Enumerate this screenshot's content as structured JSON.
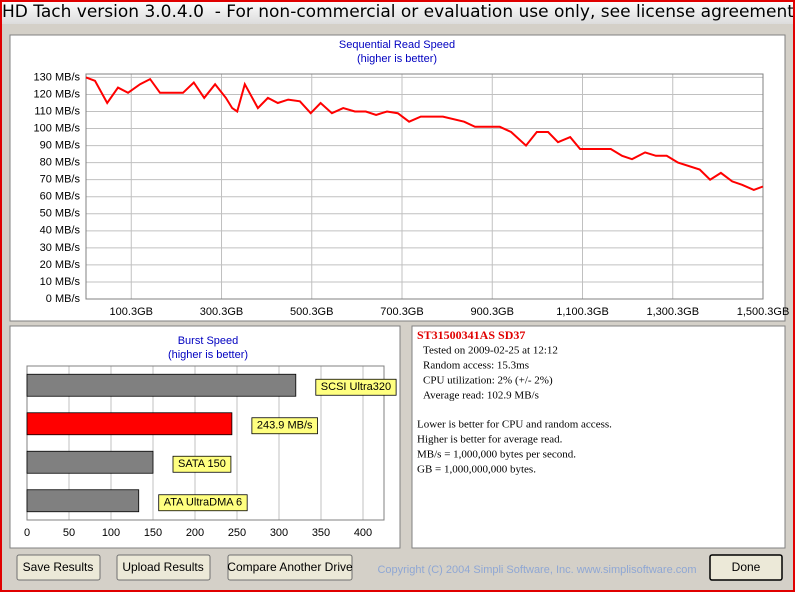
{
  "window": {
    "title": "HD Tach version 3.0.4.0  - For non-commercial or evaluation use only, see license agreement."
  },
  "chart_data": [
    {
      "type": "line",
      "title": "Sequential Read Speed",
      "subtitle": "(higher is better)",
      "x": [
        0,
        20,
        47,
        71,
        93,
        120,
        142,
        164,
        215,
        239,
        262,
        286,
        310,
        324,
        335,
        352,
        381,
        403,
        425,
        448,
        474,
        498,
        520,
        545,
        570,
        596,
        620,
        643,
        667,
        691,
        716,
        742,
        791,
        838,
        862,
        917,
        942,
        975,
        999,
        1024,
        1046,
        1073,
        1095,
        1163,
        1188,
        1210,
        1239,
        1263,
        1287,
        1312,
        1360,
        1383,
        1407,
        1432,
        1454,
        1480,
        1500
      ],
      "values": [
        130,
        128,
        115,
        124,
        121,
        126,
        129,
        121,
        121,
        127,
        118,
        126,
        118,
        112,
        110,
        126,
        112,
        118,
        115,
        117,
        116,
        109,
        115,
        109,
        112,
        110,
        110,
        108,
        110,
        109,
        104,
        107,
        107,
        104,
        101,
        101,
        98,
        90,
        98,
        98,
        92,
        95,
        88,
        88,
        84,
        82,
        86,
        84,
        84,
        80,
        76,
        70,
        74,
        69,
        67,
        64,
        66
      ],
      "color": "#ff0000",
      "xlim": [
        0,
        1500.3
      ],
      "xticks": [
        {
          "value": 100.3,
          "label": "100.3GB"
        },
        {
          "value": 300.3,
          "label": "300.3GB"
        },
        {
          "value": 500.3,
          "label": "500.3GB"
        },
        {
          "value": 700.3,
          "label": "700.3GB"
        },
        {
          "value": 900.3,
          "label": "900.3GB"
        },
        {
          "value": 1100.3,
          "label": "1,100.3GB"
        },
        {
          "value": 1300.3,
          "label": "1,300.3GB"
        },
        {
          "value": 1500.3,
          "label": "1,500.3GB"
        }
      ],
      "ylim": [
        0,
        132
      ],
      "yticks": [
        {
          "value": 0,
          "label": "0 MB/s"
        },
        {
          "value": 10,
          "label": "10 MB/s"
        },
        {
          "value": 20,
          "label": "20 MB/s"
        },
        {
          "value": 30,
          "label": "30 MB/s"
        },
        {
          "value": 40,
          "label": "40 MB/s"
        },
        {
          "value": 50,
          "label": "50 MB/s"
        },
        {
          "value": 60,
          "label": "60 MB/s"
        },
        {
          "value": 70,
          "label": "70 MB/s"
        },
        {
          "value": 80,
          "label": "80 MB/s"
        },
        {
          "value": 90,
          "label": "90 MB/s"
        },
        {
          "value": 100,
          "label": "100 MB/s"
        },
        {
          "value": 110,
          "label": "110 MB/s"
        },
        {
          "value": 120,
          "label": "120 MB/s"
        },
        {
          "value": 130,
          "label": "130 MB/s"
        }
      ],
      "grid": true
    },
    {
      "type": "bar",
      "orientation": "horizontal",
      "title": "Burst Speed",
      "subtitle": "(higher is better)",
      "categories": [
        "SCSI Ultra320",
        null,
        "SATA 150",
        "ATA UltraDMA 6"
      ],
      "values": [
        320,
        243.9,
        150,
        133
      ],
      "value_labels": [
        null,
        "243.9 MB/s",
        null,
        null
      ],
      "colors": [
        "#808080",
        "#ff0000",
        "#808080",
        "#808080"
      ],
      "label_color": "#ffff80",
      "xlim": [
        0,
        425
      ],
      "xticks": [
        0,
        50,
        100,
        150,
        200,
        250,
        300,
        350,
        400
      ],
      "grid": true
    }
  ],
  "info": {
    "drive": "ST31500341AS SD37",
    "lines": [
      "Tested on 2009-02-25 at 12:12",
      "Random access: 15.3ms",
      "CPU utilization: 2% (+/- 2%)",
      "Average read: 102.9 MB/s"
    ],
    "notes": [
      "Lower is better for CPU and random access.",
      "Higher is better for average read.",
      "MB/s = 1,000,000 bytes per second.",
      "GB = 1,000,000,000 bytes."
    ]
  },
  "footer": {
    "copyright": "Copyright (C) 2004 Simpli Software, Inc. www.simplisoftware.com",
    "buttons": [
      "Save Results",
      "Upload Results",
      "Compare Another Drive",
      "Done"
    ]
  }
}
